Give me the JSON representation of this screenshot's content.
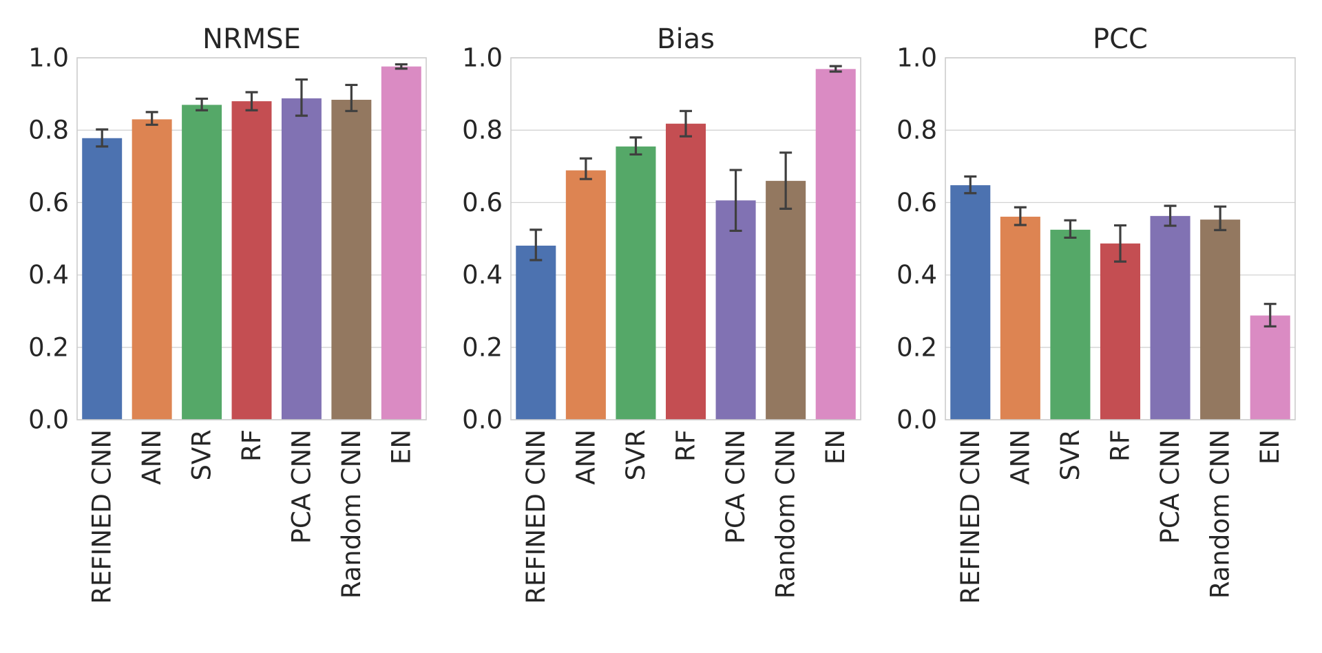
{
  "chart_data": [
    {
      "type": "bar",
      "title": "NRMSE",
      "xlabel": "",
      "ylabel": "",
      "ylim": [
        0,
        1.0
      ],
      "yticks": [
        "0.0",
        "0.2",
        "0.4",
        "0.6",
        "0.8",
        "1.0"
      ],
      "grid": true,
      "categories": [
        "REFINED CNN",
        "ANN",
        "SVR",
        "RF",
        "PCA CNN",
        "Random CNN",
        "EN"
      ],
      "values": [
        0.778,
        0.83,
        0.87,
        0.88,
        0.888,
        0.884,
        0.976
      ],
      "error_low": [
        0.755,
        0.815,
        0.855,
        0.855,
        0.84,
        0.853,
        0.97
      ],
      "error_high": [
        0.802,
        0.85,
        0.887,
        0.905,
        0.94,
        0.925,
        0.982
      ]
    },
    {
      "type": "bar",
      "title": "Bias",
      "xlabel": "",
      "ylabel": "",
      "ylim": [
        0,
        1.0
      ],
      "yticks": [
        "0.0",
        "0.2",
        "0.4",
        "0.6",
        "0.8",
        "1.0"
      ],
      "grid": true,
      "categories": [
        "REFINED CNN",
        "ANN",
        "SVR",
        "RF",
        "PCA CNN",
        "Random CNN",
        "EN"
      ],
      "values": [
        0.481,
        0.689,
        0.755,
        0.818,
        0.606,
        0.66,
        0.969
      ],
      "error_low": [
        0.441,
        0.665,
        0.733,
        0.783,
        0.522,
        0.583,
        0.962
      ],
      "error_high": [
        0.525,
        0.722,
        0.78,
        0.853,
        0.69,
        0.738,
        0.977
      ]
    },
    {
      "type": "bar",
      "title": "PCC",
      "xlabel": "",
      "ylabel": "",
      "ylim": [
        0,
        1.0
      ],
      "yticks": [
        "0.0",
        "0.2",
        "0.4",
        "0.6",
        "0.8",
        "1.0"
      ],
      "grid": true,
      "categories": [
        "REFINED CNN",
        "ANN",
        "SVR",
        "RF",
        "PCA CNN",
        "Random CNN",
        "EN"
      ],
      "values": [
        0.648,
        0.561,
        0.525,
        0.487,
        0.563,
        0.553,
        0.288
      ],
      "error_low": [
        0.626,
        0.538,
        0.503,
        0.437,
        0.536,
        0.524,
        0.258
      ],
      "error_high": [
        0.672,
        0.587,
        0.551,
        0.537,
        0.591,
        0.589,
        0.32
      ]
    }
  ],
  "colors": {
    "bars": [
      "#4c72b0",
      "#dd8452",
      "#55a868",
      "#c44e52",
      "#8172b3",
      "#937860",
      "#da8bc3"
    ],
    "grid": "#d3d3d3",
    "axis": "#cccccc",
    "errorbar": "#3f3f3f"
  }
}
